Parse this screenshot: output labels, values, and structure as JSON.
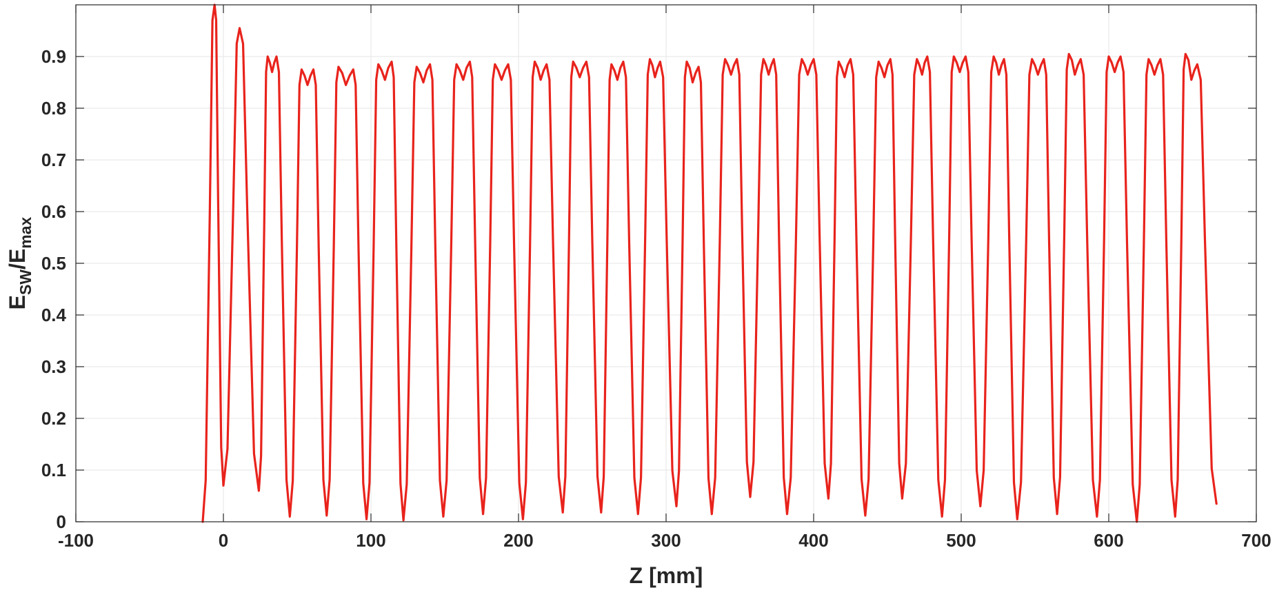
{
  "chart_data": {
    "type": "line",
    "xlabel": "Z [mm]",
    "ylabel_main": "E",
    "ylabel_sub1": "SW",
    "ylabel_sep": "/E",
    "ylabel_sub2": "max",
    "xlim": [
      -100,
      700
    ],
    "ylim": [
      0,
      1
    ],
    "x_ticks": [
      -100,
      0,
      100,
      200,
      300,
      400,
      500,
      600,
      700
    ],
    "x_tick_labels": [
      "-100",
      "0",
      "100",
      "200",
      "300",
      "400",
      "500",
      "600",
      "700"
    ],
    "y_ticks": [
      0,
      0.1,
      0.2,
      0.3,
      0.4,
      0.5,
      0.6,
      0.7,
      0.8,
      0.9
    ],
    "y_tick_labels": [
      "0",
      "0.1",
      "0.2",
      "0.3",
      "0.4",
      "0.5",
      "0.6",
      "0.7",
      "0.8",
      "0.9"
    ],
    "grid": true,
    "line_color": "#e8231c",
    "series": [
      {
        "x_start": -14,
        "x_end": 673,
        "cells": [
          {
            "x0": -14,
            "peaks": [
              [
                -6,
                1.0
              ]
            ],
            "min": 0.0
          },
          {
            "x0": 0,
            "peaks": [
              [
                11,
                0.955
              ]
            ],
            "min": 0.07
          },
          {
            "x0": 24,
            "peaks": [
              [
                30,
                0.9
              ],
              [
                36,
                0.9
              ]
            ],
            "min": 0.06
          },
          {
            "x0": 45,
            "peaks": [
              [
                53,
                0.875
              ],
              [
                61,
                0.875
              ]
            ],
            "min": 0.01
          },
          {
            "x0": 70,
            "peaks": [
              [
                78,
                0.88
              ],
              [
                88,
                0.875
              ]
            ],
            "min": 0.012
          },
          {
            "x0": 97,
            "peaks": [
              [
                105,
                0.885
              ],
              [
                114,
                0.89
              ]
            ],
            "min": 0.005
          },
          {
            "x0": 122,
            "peaks": [
              [
                131,
                0.88
              ],
              [
                140,
                0.885
              ]
            ],
            "min": 0.003
          },
          {
            "x0": 149,
            "peaks": [
              [
                158,
                0.885
              ],
              [
                167,
                0.89
              ]
            ],
            "min": 0.01
          },
          {
            "x0": 176,
            "peaks": [
              [
                184,
                0.885
              ],
              [
                193,
                0.885
              ]
            ],
            "min": 0.015
          },
          {
            "x0": 203,
            "peaks": [
              [
                211,
                0.89
              ],
              [
                219,
                0.885
              ]
            ],
            "min": 0.005
          },
          {
            "x0": 230,
            "peaks": [
              [
                237,
                0.89
              ],
              [
                246,
                0.89
              ]
            ],
            "min": 0.018
          },
          {
            "x0": 256,
            "peaks": [
              [
                263,
                0.885
              ],
              [
                271,
                0.89
              ]
            ],
            "min": 0.018
          },
          {
            "x0": 281,
            "peaks": [
              [
                289,
                0.895
              ],
              [
                296,
                0.89
              ]
            ],
            "min": 0.015
          },
          {
            "x0": 307,
            "peaks": [
              [
                314,
                0.89
              ],
              [
                322,
                0.88
              ]
            ],
            "min": 0.03
          },
          {
            "x0": 331,
            "peaks": [
              [
                340,
                0.895
              ],
              [
                348,
                0.895
              ]
            ],
            "min": 0.015
          },
          {
            "x0": 357,
            "peaks": [
              [
                366,
                0.895
              ],
              [
                373,
                0.895
              ]
            ],
            "min": 0.048
          },
          {
            "x0": 382,
            "peaks": [
              [
                392,
                0.895
              ],
              [
                400,
                0.895
              ]
            ],
            "min": 0.015
          },
          {
            "x0": 410,
            "peaks": [
              [
                417,
                0.89
              ],
              [
                425,
                0.895
              ]
            ],
            "min": 0.045
          },
          {
            "x0": 435,
            "peaks": [
              [
                444,
                0.89
              ],
              [
                452,
                0.895
              ]
            ],
            "min": 0.012
          },
          {
            "x0": 460,
            "peaks": [
              [
                470,
                0.895
              ],
              [
                477,
                0.9
              ]
            ],
            "min": 0.045
          },
          {
            "x0": 487,
            "peaks": [
              [
                495,
                0.9
              ],
              [
                503,
                0.9
              ]
            ],
            "min": 0.01
          },
          {
            "x0": 513,
            "peaks": [
              [
                522,
                0.9
              ],
              [
                529,
                0.895
              ]
            ],
            "min": 0.03
          },
          {
            "x0": 538,
            "peaks": [
              [
                548,
                0.895
              ],
              [
                556,
                0.895
              ]
            ],
            "min": 0.005
          },
          {
            "x0": 565,
            "peaks": [
              [
                573,
                0.905
              ],
              [
                581,
                0.895
              ]
            ],
            "min": 0.015
          },
          {
            "x0": 592,
            "peaks": [
              [
                600,
                0.9
              ],
              [
                608,
                0.9
              ]
            ],
            "min": 0.01
          },
          {
            "x0": 619,
            "peaks": [
              [
                627,
                0.895
              ],
              [
                635,
                0.895
              ]
            ],
            "min": 0.0
          },
          {
            "x0": 645,
            "peaks": [
              [
                652,
                0.905
              ],
              [
                660,
                0.885
              ]
            ],
            "min": 0.01
          }
        ],
        "end_value": 0.035
      }
    ]
  }
}
